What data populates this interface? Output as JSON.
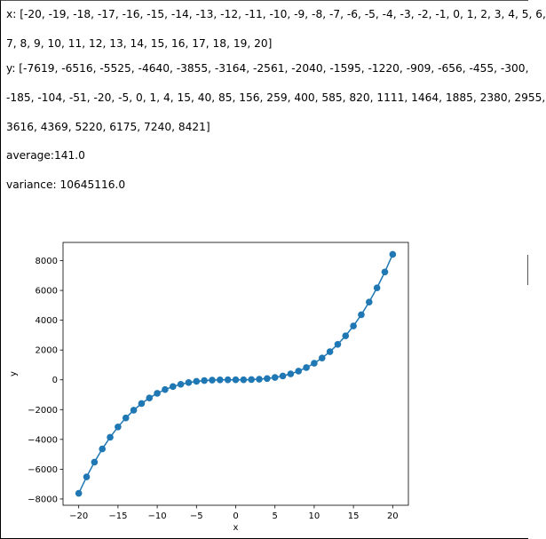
{
  "output": {
    "x_lines": [
      "x: [-20, -19, -18, -17, -16, -15, -14, -13, -12, -11, -10, -9, -8, -7, -6, -5, -4, -3, -2, -1, 0, 1, 2, 3, 4, 5, 6,",
      "7, 8, 9, 10, 11, 12, 13, 14, 15, 16, 17, 18, 19, 20]"
    ],
    "y_lines": [
      "y: [-7619, -6516, -5525, -4640, -3855, -3164, -2561, -2040, -1595, -1220, -909, -656, -455, -300,",
      "-185, -104, -51, -20, -5, 0, 1, 4, 15, 40, 85, 156, 259, 400, 585, 820, 1111, 1464, 1885, 2380, 2955,",
      "3616, 4369, 5220, 6175, 7240, 8421]"
    ],
    "average_label": "average:",
    "average_value": "141.0",
    "variance_label": "variance:",
    "variance_value": "10645116.0"
  },
  "colors": {
    "series": "#1f77b4"
  },
  "chart_data": {
    "type": "line",
    "markers": "circle",
    "title": "",
    "xlabel": "x",
    "ylabel": "y",
    "xlim": [
      -22,
      22
    ],
    "ylim": [
      -8421,
      9223
    ],
    "xticks": [
      -20,
      -15,
      -10,
      -5,
      0,
      5,
      10,
      15,
      20
    ],
    "yticks": [
      -8000,
      -6000,
      -4000,
      -2000,
      0,
      2000,
      4000,
      6000,
      8000
    ],
    "grid": false,
    "x": [
      -20,
      -19,
      -18,
      -17,
      -16,
      -15,
      -14,
      -13,
      -12,
      -11,
      -10,
      -9,
      -8,
      -7,
      -6,
      -5,
      -4,
      -3,
      -2,
      -1,
      0,
      1,
      2,
      3,
      4,
      5,
      6,
      7,
      8,
      9,
      10,
      11,
      12,
      13,
      14,
      15,
      16,
      17,
      18,
      19,
      20
    ],
    "y": [
      -7619,
      -6516,
      -5525,
      -4640,
      -3855,
      -3164,
      -2561,
      -2040,
      -1595,
      -1220,
      -909,
      -656,
      -455,
      -300,
      -185,
      -104,
      -51,
      -20,
      -5,
      0,
      1,
      4,
      15,
      40,
      85,
      156,
      259,
      400,
      585,
      820,
      1111,
      1464,
      1885,
      2380,
      2955,
      3616,
      4369,
      5220,
      6175,
      7240,
      8421
    ]
  }
}
